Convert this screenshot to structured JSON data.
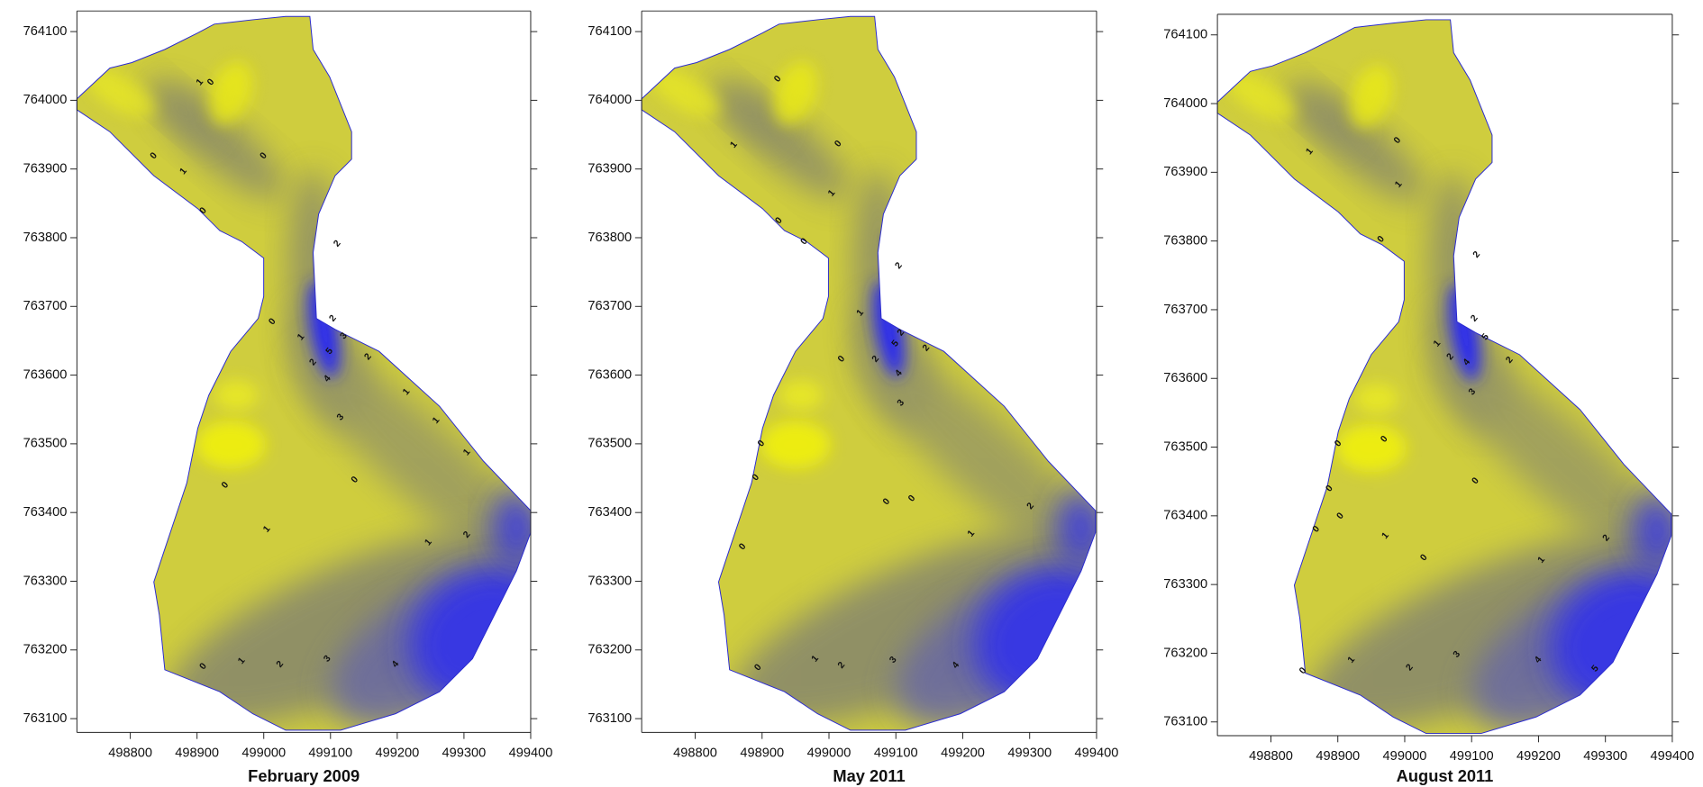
{
  "maps": [
    {
      "title": "February 2009",
      "xlim": [
        498720,
        499400
      ],
      "ylim": [
        763080,
        764130
      ],
      "xticks": [
        498800,
        498900,
        499000,
        499100,
        499200,
        499300,
        499400
      ],
      "yticks": [
        763100,
        763200,
        763300,
        763400,
        763500,
        763600,
        763700,
        763800,
        763900,
        764000,
        764100
      ],
      "contour_labels": [
        0,
        1,
        0,
        0,
        1,
        0,
        2,
        0,
        1,
        2,
        2,
        3,
        5,
        4,
        2,
        3,
        1,
        1,
        1,
        0,
        0,
        1,
        1,
        2,
        0,
        1,
        2,
        3,
        4
      ]
    },
    {
      "title": "May 2011",
      "xlim": [
        498720,
        499400
      ],
      "ylim": [
        763080,
        764130
      ],
      "xticks": [
        498800,
        498900,
        499000,
        499100,
        499200,
        499300,
        499400
      ],
      "yticks": [
        763100,
        763200,
        763300,
        763400,
        763500,
        763600,
        763700,
        763800,
        763900,
        764000,
        764100
      ],
      "contour_labels": [
        0,
        0,
        1,
        1,
        0,
        0,
        2,
        1,
        2,
        2,
        5,
        4,
        3,
        2,
        0,
        0,
        0,
        0,
        0,
        2,
        1,
        0,
        0,
        1,
        2,
        3,
        4
      ]
    },
    {
      "title": "August 2011",
      "xlim": [
        498720,
        499400
      ],
      "ylim": [
        763080,
        764130
      ],
      "xticks": [
        498800,
        498900,
        499000,
        499100,
        499200,
        499300,
        499400
      ],
      "yticks": [
        763100,
        763200,
        763300,
        763400,
        763500,
        763600,
        763700,
        763800,
        763900,
        764000,
        764100
      ],
      "contour_labels": [
        0,
        1,
        1,
        0,
        2,
        2,
        5,
        4,
        3,
        1,
        2,
        2,
        0,
        0,
        0,
        0,
        0,
        1,
        0,
        0,
        1,
        2,
        0,
        1,
        2,
        3,
        4,
        5
      ]
    }
  ]
}
